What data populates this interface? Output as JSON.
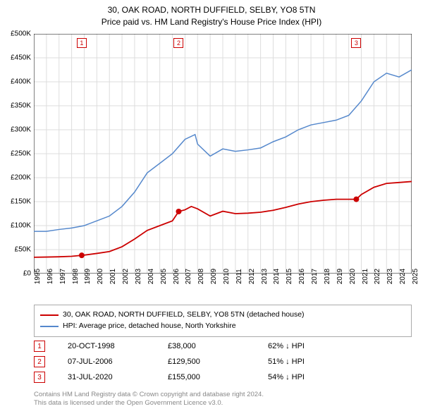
{
  "title": {
    "line1": "30, OAK ROAD, NORTH DUFFIELD, SELBY, YO8 5TN",
    "line2": "Price paid vs. HM Land Registry's House Price Index (HPI)"
  },
  "chart": {
    "type": "line",
    "background_color": "#ffffff",
    "grid_color": "#dddddd",
    "axis_color": "#000000",
    "label_fontsize": 10,
    "x_min": 1995,
    "x_max": 2025,
    "x_ticks": [
      1995,
      1996,
      1997,
      1998,
      1999,
      2000,
      2001,
      2002,
      2003,
      2004,
      2005,
      2006,
      2007,
      2008,
      2009,
      2010,
      2011,
      2012,
      2013,
      2014,
      2015,
      2016,
      2017,
      2018,
      2019,
      2020,
      2021,
      2022,
      2023,
      2024,
      2025
    ],
    "y_min": 0,
    "y_max": 500000,
    "y_ticks": [
      0,
      50000,
      100000,
      150000,
      200000,
      250000,
      300000,
      350000,
      400000,
      450000,
      500000
    ],
    "y_tick_labels": [
      "£0",
      "£50K",
      "£100K",
      "£150K",
      "£200K",
      "£250K",
      "£300K",
      "£350K",
      "£400K",
      "£450K",
      "£500K"
    ],
    "series": [
      {
        "name": "property",
        "color": "#cc0000",
        "line_width": 1.8,
        "legend_label": "30, OAK ROAD, NORTH DUFFIELD, SELBY, YO8 5TN (detached house)",
        "points": [
          [
            1995,
            34000
          ],
          [
            1996,
            34500
          ],
          [
            1997,
            35000
          ],
          [
            1998,
            36000
          ],
          [
            1998.8,
            38000
          ],
          [
            1999,
            38500
          ],
          [
            2000,
            42000
          ],
          [
            2001,
            46000
          ],
          [
            2002,
            56000
          ],
          [
            2003,
            72000
          ],
          [
            2004,
            90000
          ],
          [
            2005,
            100000
          ],
          [
            2006,
            110000
          ],
          [
            2006.5,
            129500
          ],
          [
            2007,
            133000
          ],
          [
            2007.5,
            140000
          ],
          [
            2008,
            135000
          ],
          [
            2009,
            120000
          ],
          [
            2010,
            130000
          ],
          [
            2011,
            125000
          ],
          [
            2012,
            126000
          ],
          [
            2013,
            128000
          ],
          [
            2014,
            132000
          ],
          [
            2015,
            138000
          ],
          [
            2016,
            145000
          ],
          [
            2017,
            150000
          ],
          [
            2018,
            153000
          ],
          [
            2019,
            155000
          ],
          [
            2020,
            155000
          ],
          [
            2020.6,
            155000
          ],
          [
            2021,
            165000
          ],
          [
            2022,
            180000
          ],
          [
            2023,
            188000
          ],
          [
            2024,
            190000
          ],
          [
            2025,
            192000
          ]
        ],
        "markers": [
          {
            "x": 1998.8,
            "y": 38000
          },
          {
            "x": 2006.5,
            "y": 129500
          },
          {
            "x": 2020.6,
            "y": 155000
          }
        ]
      },
      {
        "name": "hpi",
        "color": "#5588cc",
        "line_width": 1.5,
        "legend_label": "HPI: Average price, detached house, North Yorkshire",
        "points": [
          [
            1995,
            88000
          ],
          [
            1996,
            88000
          ],
          [
            1997,
            92000
          ],
          [
            1998,
            95000
          ],
          [
            1999,
            100000
          ],
          [
            2000,
            110000
          ],
          [
            2001,
            120000
          ],
          [
            2002,
            140000
          ],
          [
            2003,
            170000
          ],
          [
            2004,
            210000
          ],
          [
            2005,
            230000
          ],
          [
            2006,
            250000
          ],
          [
            2007,
            280000
          ],
          [
            2007.8,
            290000
          ],
          [
            2008,
            270000
          ],
          [
            2009,
            245000
          ],
          [
            2010,
            260000
          ],
          [
            2011,
            255000
          ],
          [
            2012,
            258000
          ],
          [
            2013,
            262000
          ],
          [
            2014,
            275000
          ],
          [
            2015,
            285000
          ],
          [
            2016,
            300000
          ],
          [
            2017,
            310000
          ],
          [
            2018,
            315000
          ],
          [
            2019,
            320000
          ],
          [
            2020,
            330000
          ],
          [
            2021,
            360000
          ],
          [
            2022,
            400000
          ],
          [
            2023,
            418000
          ],
          [
            2024,
            410000
          ],
          [
            2025,
            425000
          ]
        ]
      }
    ],
    "chart_markers": [
      {
        "num": "1",
        "x": 1998.8,
        "color": "#cc0000"
      },
      {
        "num": "2",
        "x": 2006.5,
        "color": "#cc0000"
      },
      {
        "num": "3",
        "x": 2020.6,
        "color": "#cc0000"
      }
    ]
  },
  "marker_rows": [
    {
      "num": "1",
      "date": "20-OCT-1998",
      "price": "£38,000",
      "pct": "62% ↓ HPI",
      "color": "#cc0000"
    },
    {
      "num": "2",
      "date": "07-JUL-2006",
      "price": "£129,500",
      "pct": "51% ↓ HPI",
      "color": "#cc0000"
    },
    {
      "num": "3",
      "date": "31-JUL-2020",
      "price": "£155,000",
      "pct": "54% ↓ HPI",
      "color": "#cc0000"
    }
  ],
  "footer": {
    "line1": "Contains HM Land Registry data © Crown copyright and database right 2024.",
    "line2": "This data is licensed under the Open Government Licence v3.0."
  }
}
